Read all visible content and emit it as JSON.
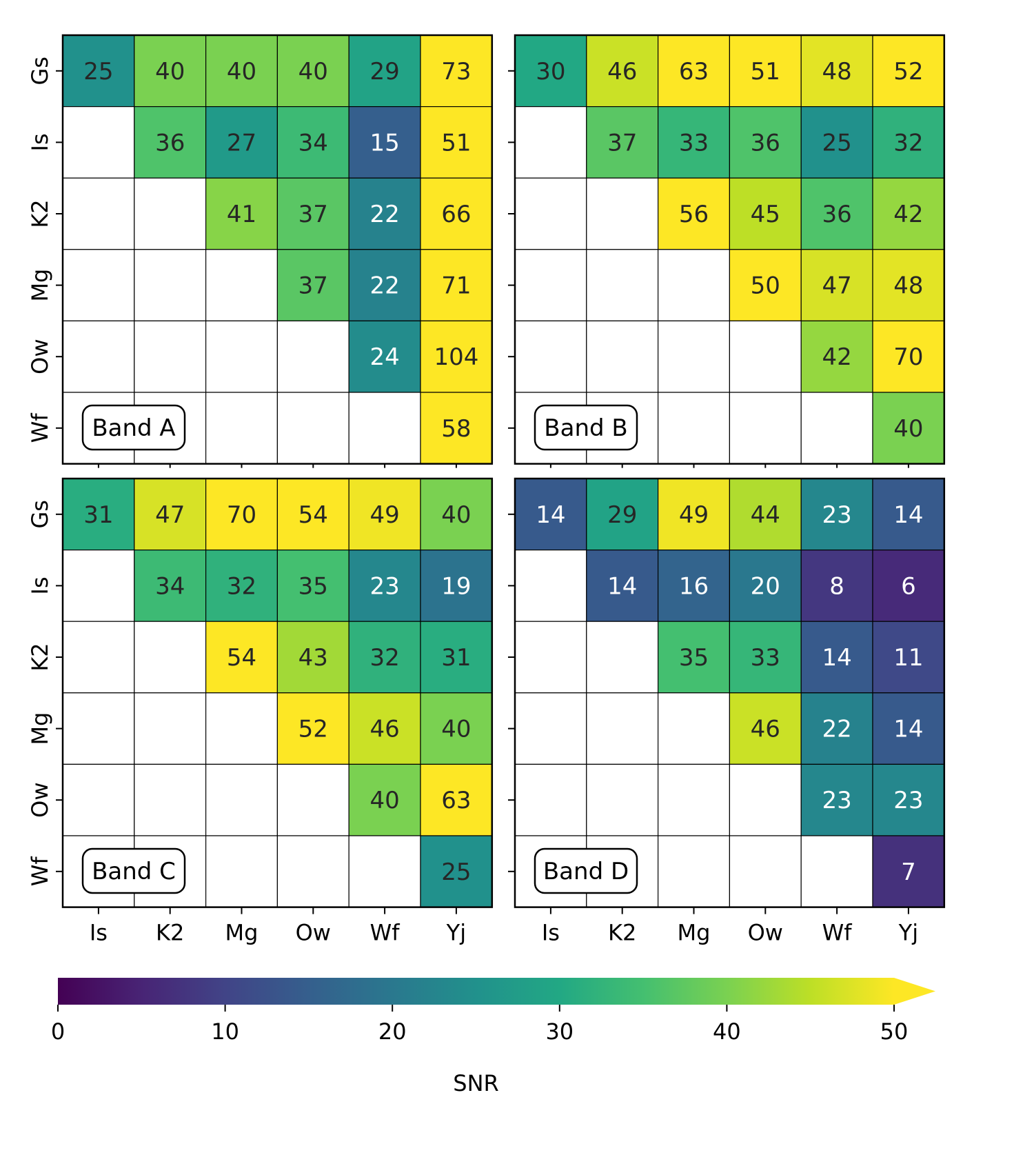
{
  "chart_data": {
    "type": "heatmap",
    "rows": [
      "Gs",
      "Is",
      "K2",
      "Mg",
      "Ow",
      "Wf"
    ],
    "cols": [
      "Is",
      "K2",
      "Mg",
      "Ow",
      "Wf",
      "Yj"
    ],
    "panels": [
      {
        "label": "Band A",
        "values": [
          [
            25,
            40,
            40,
            40,
            29,
            73
          ],
          [
            null,
            36,
            27,
            34,
            15,
            51
          ],
          [
            null,
            null,
            41,
            37,
            22,
            66
          ],
          [
            null,
            null,
            null,
            37,
            22,
            71
          ],
          [
            null,
            null,
            null,
            null,
            24,
            104
          ],
          [
            null,
            null,
            null,
            null,
            null,
            58
          ]
        ]
      },
      {
        "label": "Band B",
        "values": [
          [
            30,
            46,
            63,
            51,
            48,
            52
          ],
          [
            null,
            37,
            33,
            36,
            25,
            32
          ],
          [
            null,
            null,
            56,
            45,
            36,
            42
          ],
          [
            null,
            null,
            null,
            50,
            47,
            48
          ],
          [
            null,
            null,
            null,
            null,
            42,
            70
          ],
          [
            null,
            null,
            null,
            null,
            null,
            40
          ]
        ]
      },
      {
        "label": "Band C",
        "values": [
          [
            31,
            47,
            70,
            54,
            49,
            40
          ],
          [
            null,
            34,
            32,
            35,
            23,
            19
          ],
          [
            null,
            null,
            54,
            43,
            32,
            31
          ],
          [
            null,
            null,
            null,
            52,
            46,
            40
          ],
          [
            null,
            null,
            null,
            null,
            40,
            63
          ],
          [
            null,
            null,
            null,
            null,
            null,
            25
          ]
        ]
      },
      {
        "label": "Band D",
        "values": [
          [
            14,
            29,
            49,
            44,
            23,
            14
          ],
          [
            null,
            14,
            16,
            20,
            8,
            6
          ],
          [
            null,
            null,
            35,
            33,
            14,
            11
          ],
          [
            null,
            null,
            null,
            46,
            22,
            14
          ],
          [
            null,
            null,
            null,
            null,
            23,
            23
          ],
          [
            null,
            null,
            null,
            null,
            null,
            7
          ]
        ]
      }
    ],
    "colorbar": {
      "label": "SNR",
      "range": [
        0,
        50
      ],
      "ticks": [
        0,
        10,
        20,
        30,
        40,
        50
      ],
      "extend": "max",
      "colormap": "viridis"
    }
  }
}
